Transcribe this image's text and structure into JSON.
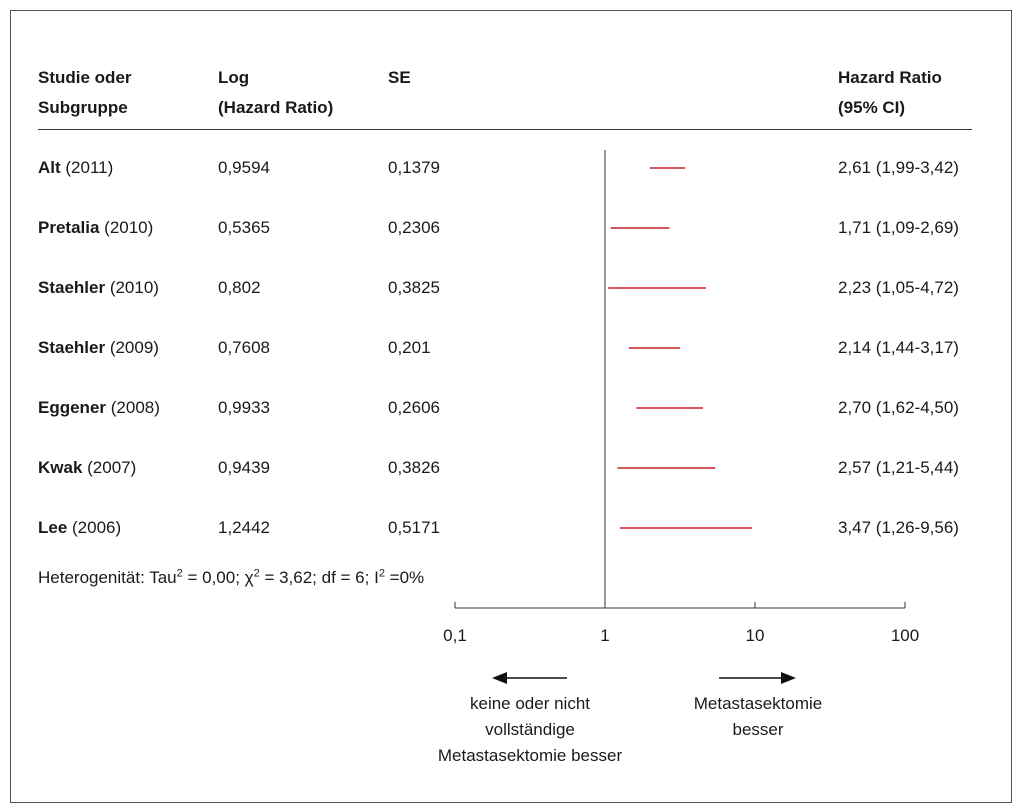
{
  "header": {
    "col_study": [
      "Studie oder",
      "Subgruppe"
    ],
    "col_log": [
      "Log",
      "(Hazard Ratio)"
    ],
    "col_se": "SE",
    "col_hr": [
      "Hazard Ratio",
      "(95% CI)"
    ]
  },
  "heterogeneity": {
    "prefix": "Heterogenität: Tau",
    "tau_sup": "2",
    "tau_rest": " = 0,00; χ",
    "chi_sup": "2",
    "chi_rest": " = 3,62; df = 6; I",
    "i_sup": "2",
    "i_rest": " =0%"
  },
  "axis_labels": {
    "left": [
      "keine oder nicht",
      "vollständige",
      "Metastasektomie besser"
    ],
    "right": [
      "Metastasektomie",
      "besser"
    ]
  },
  "colors": {
    "marker": "#c8202a",
    "line": "#333333"
  },
  "chart_data": {
    "type": "forest",
    "x_scale": "log",
    "xlim": [
      0.1,
      100
    ],
    "ticks": [
      {
        "value": 0.1,
        "label": "0,1"
      },
      {
        "value": 1,
        "label": "1"
      },
      {
        "value": 10,
        "label": "10"
      },
      {
        "value": 100,
        "label": "100"
      }
    ],
    "reference_line": 1,
    "studies": [
      {
        "name": "Alt",
        "year": "(2011)",
        "log_hr": "0,9594",
        "se": "0,1379",
        "hr": 2.61,
        "lo": 1.99,
        "hi": 3.42,
        "ci_text": "2,61 (1,99-3,42)"
      },
      {
        "name": "Pretalia",
        "year": "(2010)",
        "log_hr": "0,5365",
        "se": "0,2306",
        "hr": 1.71,
        "lo": 1.09,
        "hi": 2.69,
        "ci_text": "1,71 (1,09-2,69)"
      },
      {
        "name": "Staehler",
        "year": "(2010)",
        "log_hr": "0,802",
        "se": "0,3825",
        "hr": 2.23,
        "lo": 1.05,
        "hi": 4.72,
        "ci_text": "2,23 (1,05-4,72)"
      },
      {
        "name": "Staehler",
        "year": "(2009)",
        "log_hr": "0,7608",
        "se": "0,201",
        "hr": 2.14,
        "lo": 1.44,
        "hi": 3.17,
        "ci_text": "2,14 (1,44-3,17)"
      },
      {
        "name": "Eggener",
        "year": "(2008)",
        "log_hr": "0,9933",
        "se": "0,2606",
        "hr": 2.7,
        "lo": 1.62,
        "hi": 4.5,
        "ci_text": "2,70 (1,62-4,50)"
      },
      {
        "name": "Kwak",
        "year": "(2007)",
        "log_hr": "0,9439",
        "se": "0,3826",
        "hr": 2.57,
        "lo": 1.21,
        "hi": 5.44,
        "ci_text": "2,57 (1,21-5,44)"
      },
      {
        "name": "Lee",
        "year": "(2006)",
        "log_hr": "1,2442",
        "se": "0,5171",
        "hr": 3.47,
        "lo": 1.26,
        "hi": 9.56,
        "ci_text": "3,47 (1,26-9,56)"
      }
    ]
  }
}
